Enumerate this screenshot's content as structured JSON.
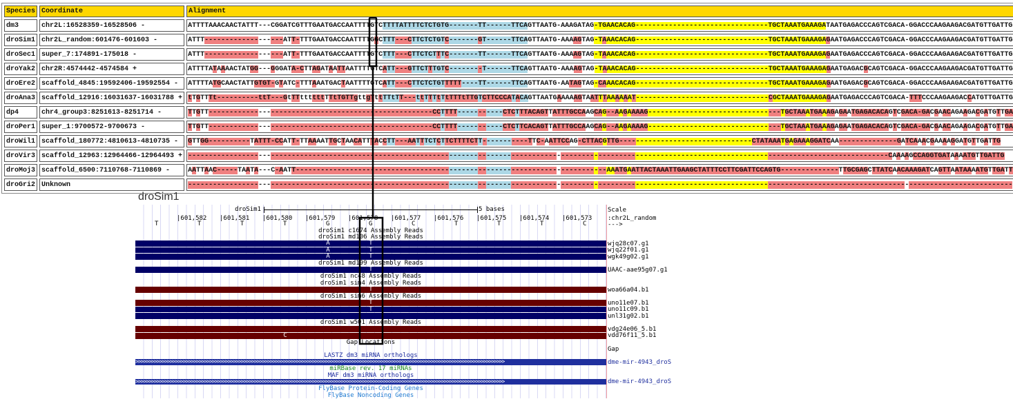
{
  "table": {
    "headers": {
      "species": "Species",
      "coordinate": "Coordinate",
      "alignment": "Alignment"
    },
    "colors": {
      "header": "#FFD700",
      "mismatch": "#F08080",
      "blue_region": "#ADD8E6",
      "yellow_region": "#FFFF00",
      "white_region": "#FFFFFF"
    },
    "rows": [
      {
        "species": "dm3",
        "coordinate": "chr2L:16528359-16528506 -",
        "seq": "ATTTTAAACAACTATTT---CGGATCGTTTGAATGACCAATTTTGTCTTTTATTTTCTCTGTG-------TT------TTCAGTTAATG-AAAGATAG-TGAACACAG--------------------------------TGCTAAATGAAAGATAATGAGACCCAGTCGACA-GGACCCAAGAAGACGATGTTGATTG"
      },
      {
        "species": "droSim1",
        "coordinate": "chr2L_random:601476-601603 -",
        "seq": "ATTT-------------------ATT-TTTGAATGACCAATTTTGGCTTT---CTTCTCTGTC-------GT------TTCAGTTAATG-AAAAGTAG-TAAACACAG--------------------------------TGCTAAATGAAAGAGAATGAGACCCAGTCGACA-GGACCCAAGAAGACGATGTTGATTG"
      },
      {
        "species": "droSec1",
        "coordinate": "super_7:174891-175018 -",
        "seq": "ATTT-------------------ATT-TTTGAATGACCAATTTTGTCTTT---CTTCTCTTTC-------TT------TTCAGTTAATG-AAAAGTAG-TAAACACAG--------------------------------TGCTAAATGAAAGAGAATGAGACCCAGTCGACA-GGACCCAAGAAGACGATGTTGATTG"
      },
      {
        "species": "droYak2",
        "coordinate": "chr2R:4574442-4574584 +",
        "seq": "ATTTTATAAAACTATGG---GGGATA-CTTAGATAATTAATTTTGTCATT---GTTCTTTGTC--------T------TTCAGTTAATG-AAAAGTAG-TAAACACAG--------------------------------TGCTAAATGAAAGAGAATGAGACGCAGTCGACA-GGACCCAAGAAGACGATGTTGATTG"
      },
      {
        "species": "droEre2",
        "coordinate": "scaffold_4845:19592406-19592554 -",
        "seq": "ATTTTATGCAACTATTGTGT-GTATC-TTTAAATGACTAATTTTGTCATT---CTTCTCTGTTTTT----TT------TTCAGTTAATG-AATAGTAG-CAAACACAG--------------------------------TGCTAAATGAAAGAGAATGAGACGCAGTCGACA-GGACCCAAGAAGACGATGTTGATTG"
      },
      {
        "species": "droAna3",
        "coordinate": "scaffold_12916:16031637-16031788 +",
        "seq": "tTGTTTt----------ttT---GtTTttttttTTtTGTTgttgTttTTtTT---ttTTTtTtTTTtTTGTCTTCCCATACAGTTAATGAAAAAGTAATTTAAAAAAT--------------------------------CGCTAAATGAAAGAGAATGAGACCCAGTCGACA-TTTCCCAAGAAGACCATGTTGATTG"
      },
      {
        "species": "dp4",
        "coordinate": "chr4_group3:8251613-8251714 -",
        "seq": "TTGTT------------------------------------------------------CCTTTT-----------CTCTTTACAGTTATTTGCCAAGCAG--AAGAAAAG--------------------------------TGCTAAATGAAAGAGAATGAGACACAGTCGACA-GACGAACAGAAGACGATGTTGATTG"
      },
      {
        "species": "droPer1",
        "coordinate": "super_1:9700572-9700673 -",
        "seq": "TTGTT------------------------------------------------------CCTTTT-----------CTCTTCACAGTTATTTGCCAAGCAG--AAGAAAAG--------------------------------TGCTAAATGAAAGAGAATGAGACACAGTCGACA-GACGAACAGAAGACGATGTTGATTG"
      },
      {
        "species": "droWil1",
        "coordinate": "scaffold_180772:4810613-4810735 -",
        "seq": "GTTGG----------TATTT-CCATT-TTAAAATTGCTAACATTTACCTT---AATTTCTCTTCTTTTCTT-----------TTC-AATTCCAG-CTTACGTTG--------------------------------CTATAAATGAGAAAGGATCAA--------------GATCAAACGAAAAGGATGTTGATTG"
      },
      {
        "species": "droVir3",
        "coordinate": "scaffold_12963:12964466-12964493 +",
        "seq": "-------------------------------------------------------------------------------------------------------------------------------------------------------------------------CAAAAGCCAGGTGATAAAATGTTGATTG"
      },
      {
        "species": "droMoj3",
        "coordinate": "scaffold_6500:7110768-7110869 -",
        "seq": "AATTAAC-----TAATA---C-AATT---------------------------------------------------------------------------AAATGAATTACTAAATTGAAGCTATTTCCTTCGATTCCAGTG--------------TTGCGAGCTTATCAACAAAGATCAGTTAATAAAATGTTGATTG"
      },
      {
        "species": "droGri2",
        "coordinate": "Unknown",
        "seq": "-------------------------------------------------------------------------------------------------------------------------------------------------------------------------------------------------------"
      }
    ]
  },
  "browser": {
    "title": "droSim1",
    "scale": {
      "assembly": "droSim1",
      "length_label": "5 bases",
      "label": "Scale"
    },
    "chrom_label": ":chr2L_random",
    "strand": "--->",
    "positions": [
      "601,582",
      "601,581",
      "601,580",
      "601,579",
      "601,578",
      "601,577",
      "601,576",
      "601,575",
      "601,574",
      "601,573"
    ],
    "bases": [
      "T",
      "T",
      "T",
      "T",
      "G",
      "G",
      "C",
      "T",
      "T",
      "T",
      "C"
    ],
    "colors": {
      "forward_read": "#000066",
      "reverse_read": "#660000",
      "mirna": "#1f2f9e",
      "mirbase_label": "#1a8a1a",
      "flybase_label": "#1e7ad0",
      "track_label": "#000000",
      "lastz_label": "#1a2a9e"
    },
    "tracks": [
      {
        "type": "label",
        "text": "droSim1 c1674 Assembly Reads"
      },
      {
        "type": "label",
        "text": "droSim1 md106 Assembly Reads"
      },
      {
        "type": "read",
        "strand": "forward",
        "name": "wjq28c07.g1",
        "mismatches": [
          {
            "base_index": 4,
            "base": "A"
          },
          {
            "base_index": 5,
            "base": "T"
          }
        ]
      },
      {
        "type": "read",
        "strand": "forward",
        "name": "wjq22f01.g1",
        "mismatches": [
          {
            "base_index": 4,
            "base": "A"
          },
          {
            "base_index": 5,
            "base": "T"
          }
        ]
      },
      {
        "type": "read",
        "strand": "forward",
        "name": "wgk49g02.g1",
        "mismatches": [
          {
            "base_index": 4,
            "base": "A"
          },
          {
            "base_index": 5,
            "base": "T"
          }
        ]
      },
      {
        "type": "label",
        "text": "droSim1 md199 Assembly Reads"
      },
      {
        "type": "read",
        "strand": "forward",
        "name": "UAAC-aae95g07.g1",
        "mismatches": [
          {
            "base_index": 5,
            "base": "T"
          }
        ]
      },
      {
        "type": "label",
        "text": "droSim1 nc48 Assembly Reads"
      },
      {
        "type": "label",
        "text": "droSim1 sim4 Assembly Reads"
      },
      {
        "type": "read",
        "strand": "reverse",
        "name": "woa66a04.b1",
        "mismatches": [
          {
            "base_index": 5,
            "base": "T"
          }
        ]
      },
      {
        "type": "label",
        "text": "droSim1 sim6 Assembly Reads"
      },
      {
        "type": "read",
        "strand": "reverse",
        "name": "uno11e07.b1",
        "mismatches": [
          {
            "base_index": 5,
            "base": "T"
          }
        ]
      },
      {
        "type": "read",
        "strand": "forward",
        "name": "uno11c09.b1",
        "mismatches": [
          {
            "base_index": 5,
            "base": "T"
          }
        ]
      },
      {
        "type": "read",
        "strand": "forward",
        "name": "unl31g02.b1",
        "mismatches": []
      },
      {
        "type": "label",
        "text": "droSim1 w501 Assembly Reads"
      },
      {
        "type": "read",
        "strand": "reverse",
        "name": "vdg24e06_5.b1",
        "mismatches": []
      },
      {
        "type": "read",
        "strand": "reverse",
        "name": "vdd76f11_5.b1",
        "mismatches": [
          {
            "base_index": 3,
            "base": "C"
          }
        ]
      },
      {
        "type": "label",
        "text": "Gap Locations"
      },
      {
        "type": "side",
        "name": "Gap"
      },
      {
        "type": "label",
        "text": "LASTZ dm3 miRNA orthologs",
        "color": "lastz_label"
      },
      {
        "type": "mirna",
        "name": "dme-mir-4943_droS"
      },
      {
        "type": "label",
        "text": "miRBase rev. 17 miRNAs",
        "color": "mirbase_label"
      },
      {
        "type": "label",
        "text": "MAF dm3 miRNA orthologs",
        "color": "lastz_label"
      },
      {
        "type": "mirna",
        "name": "dme-mir-4943_droS"
      },
      {
        "type": "label",
        "text": "FlyBase Protein-Coding Genes",
        "color": "flybase_label"
      },
      {
        "type": "label",
        "text": "FlyBase Noncoding Genes",
        "color": "flybase_label"
      }
    ]
  }
}
